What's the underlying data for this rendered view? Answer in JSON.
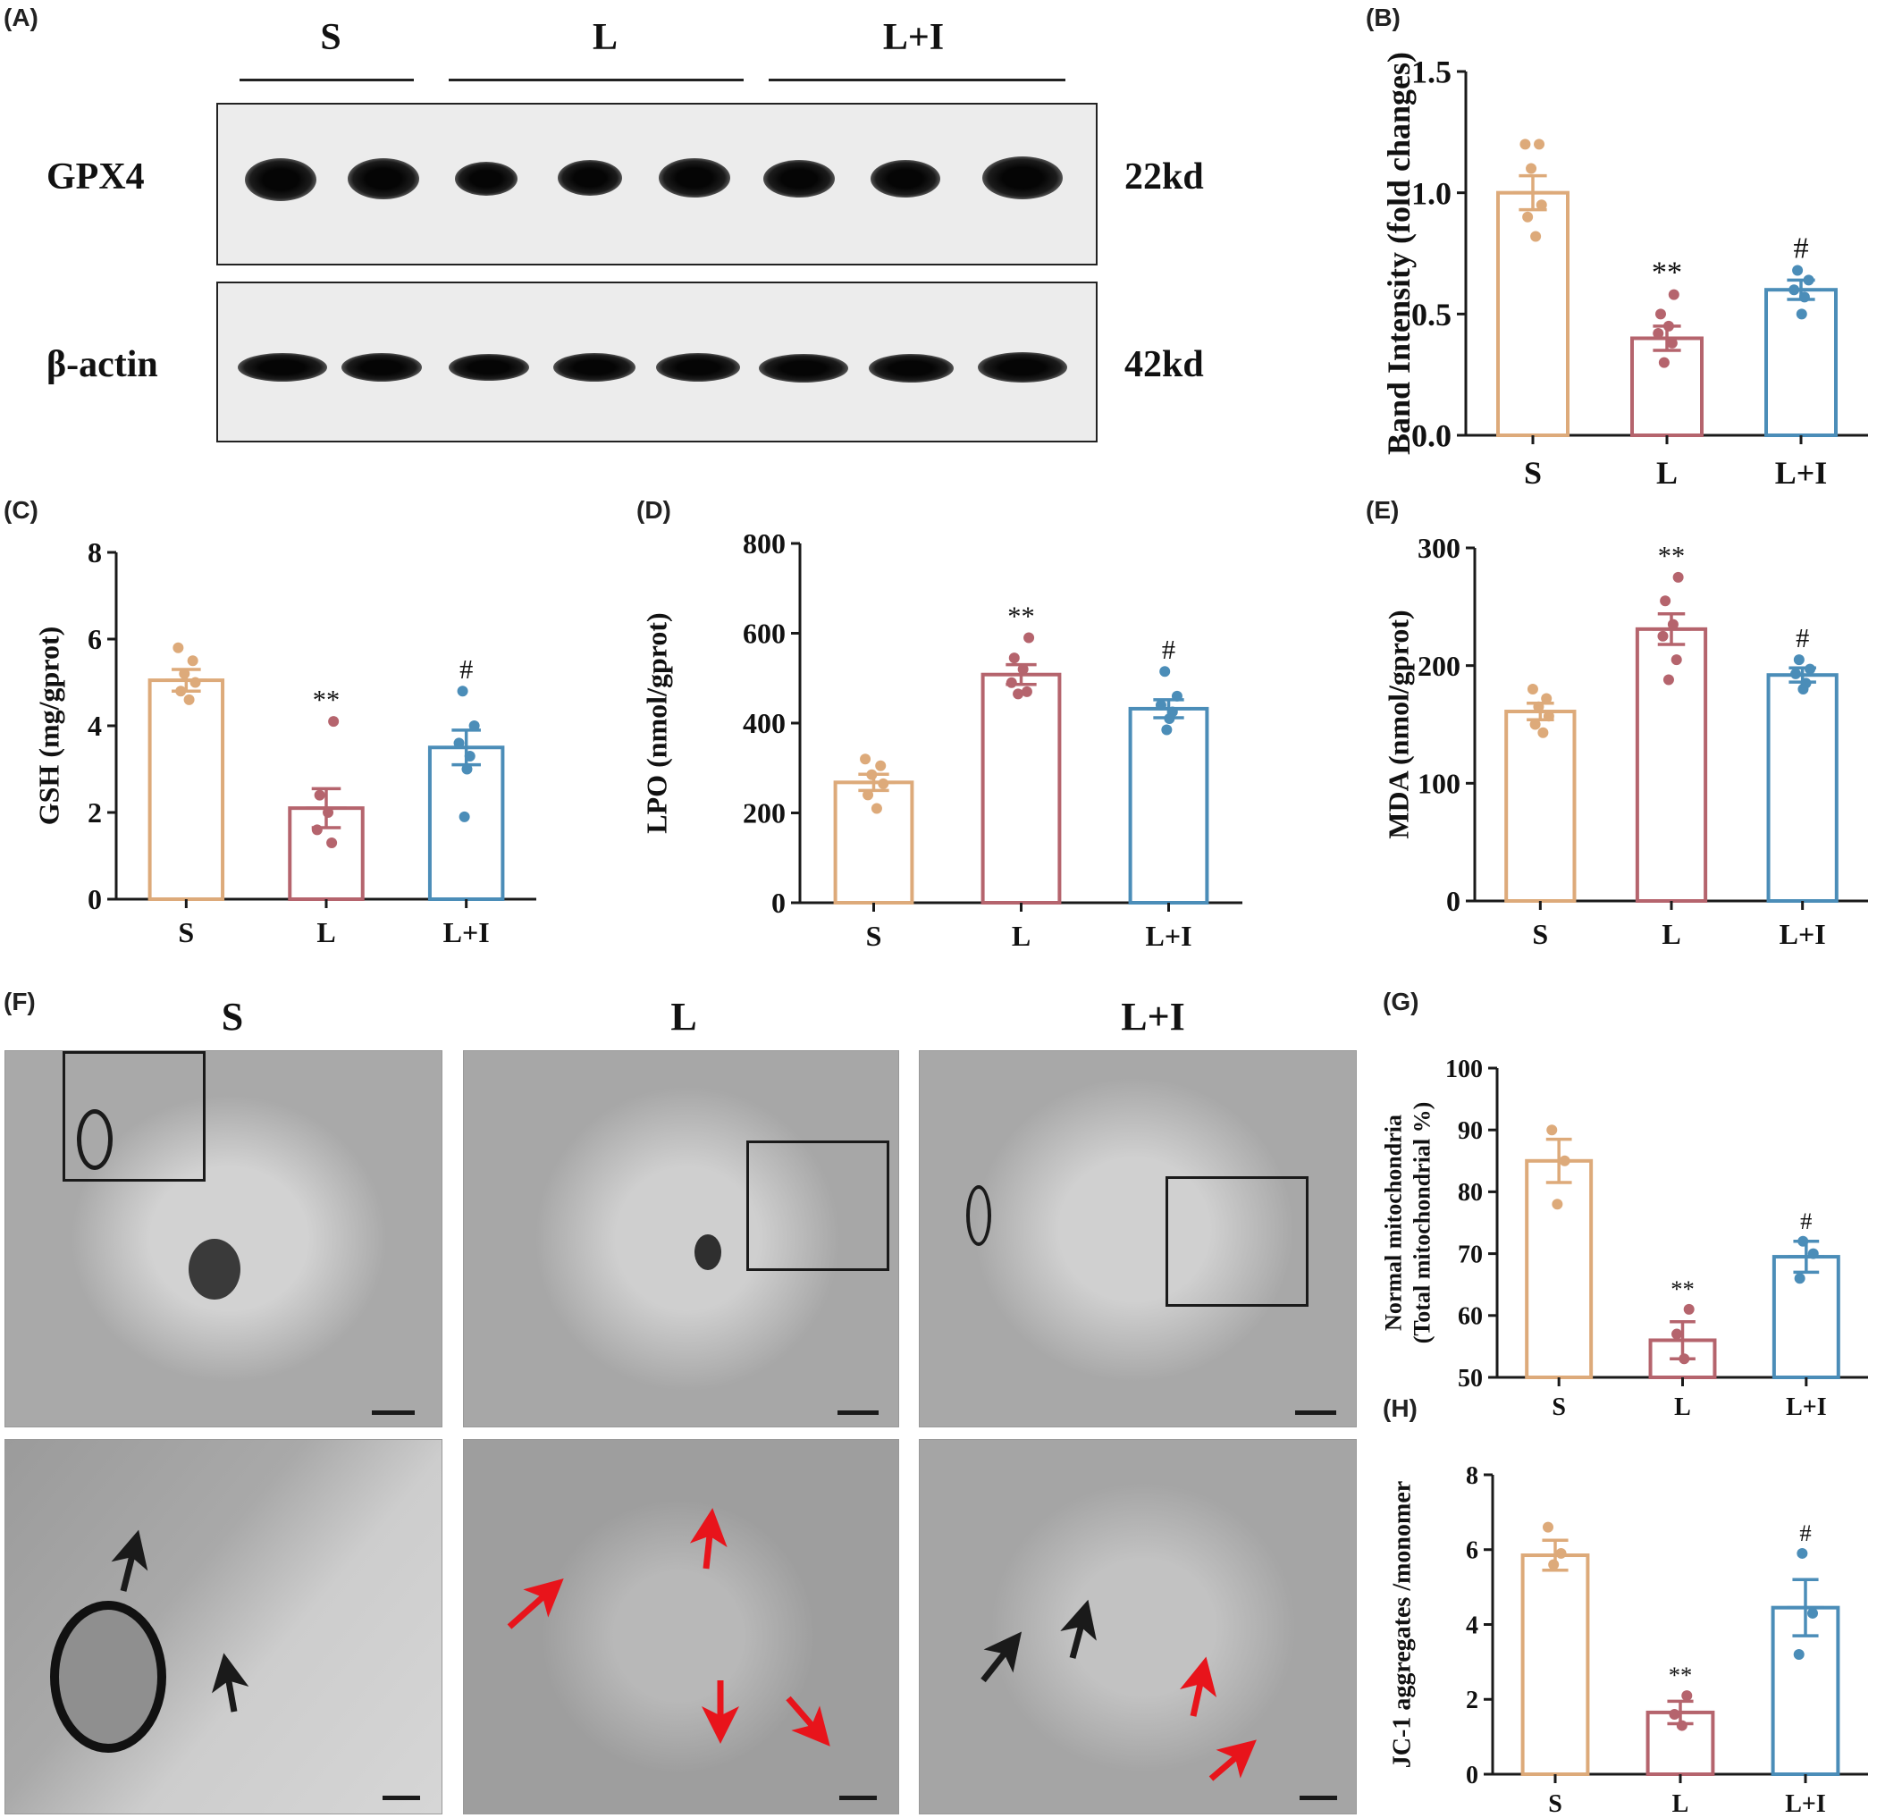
{
  "panels": {
    "A": "(A)",
    "B": "(B)",
    "C": "(C)",
    "D": "(D)",
    "E": "(E)",
    "F": "(F)",
    "G": "(G)",
    "H": "(H)"
  },
  "blot": {
    "groups": [
      "S",
      "L",
      "L+I"
    ],
    "rows": [
      {
        "label": "GPX4",
        "kd": "22kd"
      },
      {
        "label": "β-actin",
        "kd": "42kd"
      }
    ]
  },
  "em": {
    "titles": [
      "S",
      "L",
      "L+I"
    ]
  },
  "colors": {
    "S": "#DDAA7A",
    "L": "#B5646D",
    "L+I": "#4B8DB8",
    "axis": "#1a1a1a",
    "red_arrow": "#E8141B",
    "black_arrow": "#1a1a1a"
  },
  "chart_data": [
    {
      "id": "B",
      "type": "bar",
      "categories": [
        "S",
        "L",
        "L+I"
      ],
      "values": [
        1.0,
        0.4,
        0.6
      ],
      "sem": [
        0.07,
        0.05,
        0.04
      ],
      "points": [
        [
          1.2,
          1.2,
          1.1,
          0.95,
          0.9,
          0.82
        ],
        [
          0.58,
          0.5,
          0.45,
          0.42,
          0.38,
          0.3
        ],
        [
          0.68,
          0.64,
          0.6,
          0.57,
          0.5
        ]
      ],
      "significance": [
        "",
        "**",
        "#"
      ],
      "ylabel": "Band Intensity (fold changes)",
      "ylim": [
        0,
        1.5
      ],
      "yticks": [
        "0.0",
        "0.5",
        "1.0",
        "1.5"
      ]
    },
    {
      "id": "C",
      "type": "bar",
      "categories": [
        "S",
        "L",
        "L+I"
      ],
      "values": [
        5.05,
        2.1,
        3.5
      ],
      "sem": [
        0.25,
        0.45,
        0.4
      ],
      "points": [
        [
          5.8,
          5.5,
          5.2,
          5.0,
          4.8,
          4.6
        ],
        [
          4.1,
          2.4,
          2.0,
          1.6,
          1.3
        ],
        [
          4.8,
          4.0,
          3.6,
          3.3,
          3.0,
          1.9
        ]
      ],
      "significance": [
        "",
        "**",
        "#"
      ],
      "ylabel": "GSH (mg/gprot)",
      "ylim": [
        0,
        8
      ],
      "yticks": [
        "0",
        "2",
        "4",
        "6",
        "8"
      ]
    },
    {
      "id": "D",
      "type": "bar",
      "categories": [
        "S",
        "L",
        "L+I"
      ],
      "values": [
        268,
        508,
        432
      ],
      "sem": [
        18,
        22,
        20
      ],
      "points": [
        [
          320,
          305,
          285,
          265,
          240,
          210
        ],
        [
          590,
          545,
          520,
          490,
          470,
          465
        ],
        [
          515,
          460,
          440,
          425,
          410,
          385
        ]
      ],
      "significance": [
        "",
        "**",
        "#"
      ],
      "ylabel": "LPO (nmol/gprot)",
      "ylim": [
        0,
        800
      ],
      "yticks": [
        "0",
        "200",
        "400",
        "600",
        "800"
      ]
    },
    {
      "id": "E",
      "type": "bar",
      "categories": [
        "S",
        "L",
        "L+I"
      ],
      "values": [
        161,
        231,
        192
      ],
      "sem": [
        7,
        13,
        6
      ],
      "points": [
        [
          180,
          172,
          165,
          157,
          150,
          143
        ],
        [
          275,
          255,
          235,
          225,
          205,
          188
        ],
        [
          205,
          197,
          193,
          185,
          180
        ]
      ],
      "significance": [
        "",
        "**",
        "#"
      ],
      "ylabel": "MDA (nmol/gprot)",
      "ylim": [
        0,
        300
      ],
      "yticks": [
        "0",
        "100",
        "200",
        "300"
      ]
    },
    {
      "id": "G",
      "type": "bar",
      "categories": [
        "S",
        "L",
        "L+I"
      ],
      "values": [
        85,
        56,
        69.5
      ],
      "sem": [
        3.5,
        3,
        2.5
      ],
      "points": [
        [
          90,
          85,
          78
        ],
        [
          61,
          57,
          53
        ],
        [
          72,
          70,
          66
        ]
      ],
      "significance": [
        "",
        "**",
        "#"
      ],
      "ylabel": [
        "Normal mitochondria",
        "(Total mitochondrial %)"
      ],
      "ylim": [
        50,
        100
      ],
      "yticks": [
        "50",
        "60",
        "70",
        "80",
        "90",
        "100"
      ]
    },
    {
      "id": "H",
      "type": "bar",
      "categories": [
        "S",
        "L",
        "L+I"
      ],
      "values": [
        5.85,
        1.65,
        4.45
      ],
      "sem": [
        0.4,
        0.3,
        0.75
      ],
      "points": [
        [
          6.6,
          5.9,
          5.6
        ],
        [
          2.1,
          1.6,
          1.3
        ],
        [
          5.9,
          4.3,
          3.2
        ]
      ],
      "significance": [
        "",
        "**",
        "#"
      ],
      "ylabel": "JC-1 aggregates /monomer",
      "ylim": [
        0,
        8
      ],
      "yticks": [
        "0",
        "2",
        "4",
        "6",
        "8"
      ]
    }
  ]
}
